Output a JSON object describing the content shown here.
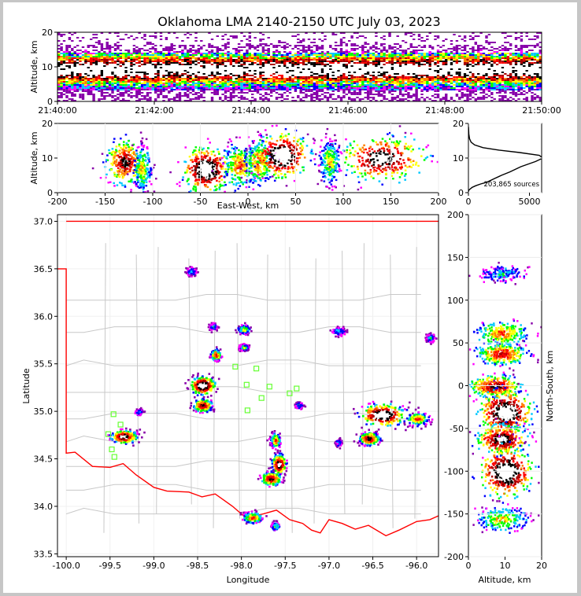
{
  "title": "Oklahoma LMA 2140-2150 UTC July 03, 2023",
  "colors": {
    "border_state": "#ff0000",
    "county": "#c8c8c8",
    "station": "#66ff33",
    "density_scale": [
      "#8800aa",
      "#ff00ff",
      "#0000ff",
      "#00c8ff",
      "#00ff00",
      "#ffff00",
      "#ff8000",
      "#ff0000",
      "#aa0000",
      "#000000",
      "#ffffff"
    ]
  },
  "chart_data": [
    {
      "id": "time-height",
      "type": "heatmap",
      "ylabel": "Altitude, km",
      "xlim": [
        "21:40:00",
        "21:50:00"
      ],
      "ylim": [
        0,
        20
      ],
      "xticks": [
        "21:40:00",
        "21:42:00",
        "21:44:00",
        "21:46:00",
        "21:48:00",
        "21:50:00"
      ],
      "yticks": [
        0,
        10,
        20
      ],
      "core_altitude_km": [
        3,
        14
      ],
      "peak_altitude_km": 9
    },
    {
      "id": "ew-height",
      "type": "heatmap",
      "xlabel": "East-West, km",
      "ylabel": "Altitude, km",
      "xlim": [
        -200,
        200
      ],
      "ylim": [
        0,
        20
      ],
      "xticks": [
        -200,
        -150,
        -100,
        -50,
        0,
        50,
        100,
        150,
        200
      ],
      "yticks": [
        0,
        10,
        20
      ],
      "clusters": [
        {
          "x": -130,
          "z": 9,
          "w": 10,
          "intensity": 0.8
        },
        {
          "x": -112,
          "z": 7,
          "w": 5,
          "intensity": 0.5
        },
        {
          "x": -45,
          "z": 7,
          "w": 12,
          "intensity": 1.0
        },
        {
          "x": -10,
          "z": 8,
          "w": 8,
          "intensity": 0.6
        },
        {
          "x": 10,
          "z": 9,
          "w": 7,
          "intensity": 0.6
        },
        {
          "x": 35,
          "z": 11,
          "w": 14,
          "intensity": 1.0
        },
        {
          "x": 85,
          "z": 9,
          "w": 5,
          "intensity": 0.5
        },
        {
          "x": 140,
          "z": 10,
          "w": 22,
          "intensity": 0.9
        }
      ]
    },
    {
      "id": "altitude-histogram",
      "type": "line",
      "annotation": "203,865 sources",
      "xlim": [
        0,
        6000
      ],
      "ylim": [
        0,
        20
      ],
      "xticks": [
        0,
        5000
      ],
      "yticks": [
        0,
        10,
        20
      ],
      "x": [
        5,
        30,
        120,
        300,
        600,
        1000,
        1500,
        2100,
        2700,
        3400,
        4300,
        5500,
        6100,
        5800,
        4200,
        2500,
        1200,
        500,
        220,
        90,
        30,
        8
      ],
      "y": [
        0.3,
        0.7,
        1.0,
        1.5,
        2.0,
        2.5,
        3.0,
        4.0,
        5.0,
        6.0,
        7.5,
        9.0,
        10.0,
        10.8,
        11.6,
        12.3,
        13.0,
        13.8,
        14.6,
        15.6,
        17.0,
        19.0
      ]
    },
    {
      "id": "plan-view",
      "type": "heatmap",
      "xlabel": "Longitude",
      "ylabel": "Latitude",
      "xlim": [
        -100.1,
        -95.75
      ],
      "ylim": [
        33.47,
        37.07
      ],
      "xticks": [
        -100.0,
        -99.5,
        -99.0,
        -98.5,
        -98.0,
        -97.5,
        -97.0,
        -96.5,
        -96.0
      ],
      "yticks": [
        33.5,
        34.0,
        34.5,
        35.0,
        35.5,
        36.0,
        36.5,
        37.0
      ],
      "xtick_labels": [
        "-100.0",
        "-99.5",
        "-99.0",
        "-98.5",
        "-98.0",
        "-97.5",
        "-97.0",
        "-96.5",
        "-96.0"
      ],
      "ytick_labels": [
        "33.5",
        "34.0",
        "34.5",
        "35.0",
        "35.5",
        "36.0",
        "36.5",
        "37.0"
      ],
      "clusters": [
        {
          "lon": -98.45,
          "lat": 35.28,
          "w": 0.12,
          "h": 0.08,
          "intensity": 1.0
        },
        {
          "lon": -98.45,
          "lat": 35.07,
          "w": 0.09,
          "h": 0.06,
          "intensity": 0.8
        },
        {
          "lon": -98.3,
          "lat": 35.6,
          "w": 0.05,
          "h": 0.05,
          "intensity": 0.7
        },
        {
          "lon": -97.98,
          "lat": 35.87,
          "w": 0.06,
          "h": 0.04,
          "intensity": 0.5
        },
        {
          "lon": -97.98,
          "lat": 35.68,
          "w": 0.05,
          "h": 0.03,
          "intensity": 0.4
        },
        {
          "lon": -98.33,
          "lat": 35.9,
          "w": 0.04,
          "h": 0.03,
          "intensity": 0.3
        },
        {
          "lon": -98.58,
          "lat": 36.48,
          "w": 0.05,
          "h": 0.04,
          "intensity": 0.3
        },
        {
          "lon": -99.35,
          "lat": 34.74,
          "w": 0.13,
          "h": 0.06,
          "intensity": 0.9
        },
        {
          "lon": -99.18,
          "lat": 35.0,
          "w": 0.04,
          "h": 0.03,
          "intensity": 0.3
        },
        {
          "lon": -97.62,
          "lat": 34.7,
          "w": 0.05,
          "h": 0.07,
          "intensity": 0.6
        },
        {
          "lon": -97.58,
          "lat": 34.45,
          "w": 0.07,
          "h": 0.09,
          "intensity": 0.9
        },
        {
          "lon": -97.67,
          "lat": 34.3,
          "w": 0.1,
          "h": 0.06,
          "intensity": 0.8
        },
        {
          "lon": -97.88,
          "lat": 33.89,
          "w": 0.1,
          "h": 0.05,
          "intensity": 0.6
        },
        {
          "lon": -97.62,
          "lat": 33.8,
          "w": 0.04,
          "h": 0.04,
          "intensity": 0.4
        },
        {
          "lon": -97.35,
          "lat": 35.07,
          "w": 0.04,
          "h": 0.03,
          "intensity": 0.3
        },
        {
          "lon": -96.9,
          "lat": 35.85,
          "w": 0.07,
          "h": 0.04,
          "intensity": 0.3
        },
        {
          "lon": -96.9,
          "lat": 34.68,
          "w": 0.03,
          "h": 0.03,
          "intensity": 0.3
        },
        {
          "lon": -96.4,
          "lat": 34.97,
          "w": 0.22,
          "h": 0.1,
          "intensity": 1.0
        },
        {
          "lon": -96.0,
          "lat": 34.93,
          "w": 0.12,
          "h": 0.06,
          "intensity": 0.6
        },
        {
          "lon": -96.55,
          "lat": 34.72,
          "w": 0.1,
          "h": 0.06,
          "intensity": 0.8
        },
        {
          "lon": -95.85,
          "lat": 35.78,
          "w": 0.05,
          "h": 0.04,
          "intensity": 0.3
        }
      ],
      "stations": [
        {
          "lon": -99.46,
          "lat": 34.97
        },
        {
          "lon": -99.38,
          "lat": 34.86
        },
        {
          "lon": -99.52,
          "lat": 34.76
        },
        {
          "lon": -99.48,
          "lat": 34.6
        },
        {
          "lon": -99.45,
          "lat": 34.52
        },
        {
          "lon": -98.07,
          "lat": 35.47
        },
        {
          "lon": -97.83,
          "lat": 35.45
        },
        {
          "lon": -97.94,
          "lat": 35.28
        },
        {
          "lon": -97.93,
          "lat": 35.01
        },
        {
          "lon": -97.68,
          "lat": 35.26
        },
        {
          "lon": -97.77,
          "lat": 35.14
        },
        {
          "lon": -97.45,
          "lat": 35.19
        },
        {
          "lon": -97.37,
          "lat": 35.24
        }
      ]
    },
    {
      "id": "ns-height",
      "type": "heatmap",
      "xlabel": "Altitude, km",
      "ylabel": "North-South, km",
      "xlim": [
        0,
        20
      ],
      "ylim": [
        -200,
        200
      ],
      "xticks": [
        0,
        10,
        20
      ],
      "yticks": [
        -200,
        -150,
        -100,
        -50,
        0,
        50,
        100,
        150,
        200
      ],
      "clusters": [
        {
          "y": 132,
          "z": 9,
          "h": 5,
          "intensity": 0.3
        },
        {
          "y": 62,
          "z": 9,
          "h": 7,
          "intensity": 0.6
        },
        {
          "y": 38,
          "z": 9,
          "h": 6,
          "intensity": 0.7
        },
        {
          "y": 0,
          "z": 7,
          "h": 6,
          "intensity": 0.8
        },
        {
          "y": -30,
          "z": 10,
          "h": 12,
          "intensity": 1.0
        },
        {
          "y": -62,
          "z": 9,
          "h": 8,
          "intensity": 0.9
        },
        {
          "y": -100,
          "z": 10,
          "h": 14,
          "intensity": 1.0
        },
        {
          "y": -155,
          "z": 9,
          "h": 7,
          "intensity": 0.5
        }
      ]
    }
  ]
}
